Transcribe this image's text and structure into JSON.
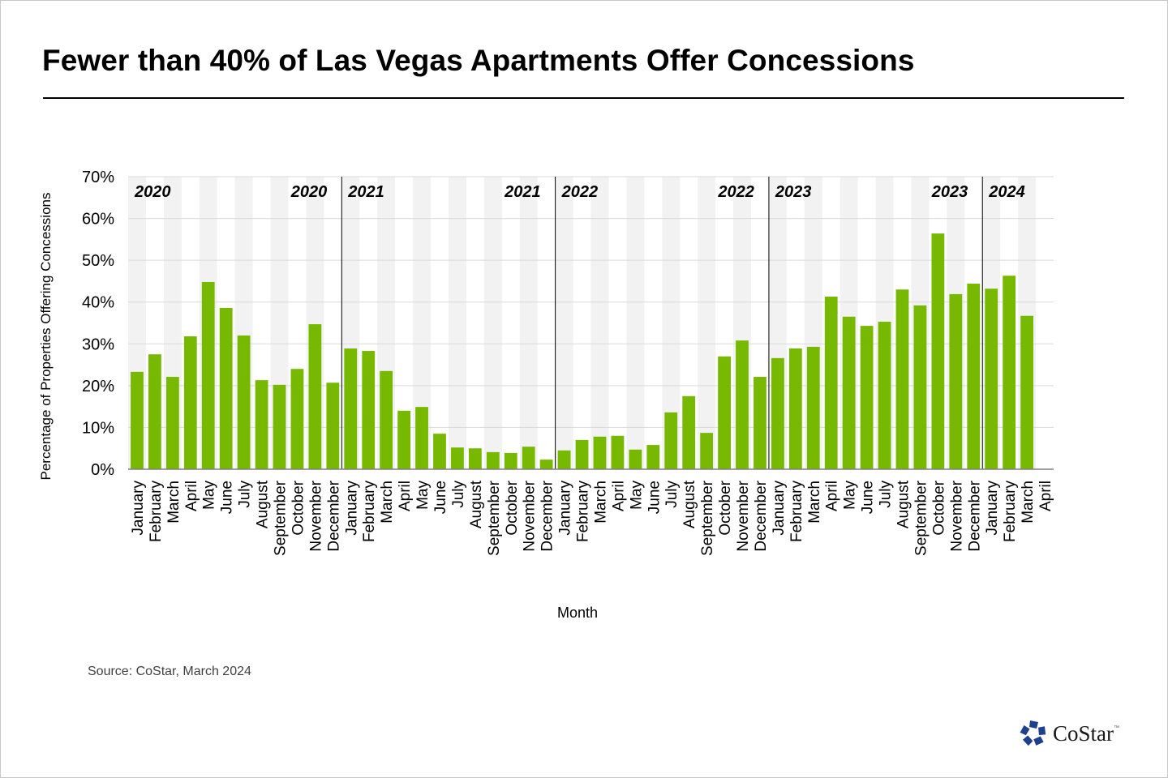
{
  "title": "Fewer than 40% of Las Vegas Apartments Offer Concessions",
  "source": "Source: CoStar, March 2024",
  "logo": {
    "text": "CoStar",
    "tm": "™",
    "icon": "costar-star-icon",
    "color": "#1f3f8f"
  },
  "colors": {
    "bar": "#77b900",
    "band": "#f2f2f2",
    "grid": "#d9d9d9",
    "axis": "#808080",
    "divider": "#000000"
  },
  "chart_data": {
    "type": "bar",
    "title": "Fewer than 40% of Las Vegas Apartments Offer Concessions",
    "xlabel": "Month",
    "ylabel": "Percentage of Properties Offering Concessions",
    "ylim": [
      0,
      70
    ],
    "yticks": [
      "0%",
      "10%",
      "20%",
      "30%",
      "40%",
      "50%",
      "60%",
      "70%"
    ],
    "grid": true,
    "legend": "none",
    "categories": [
      "January",
      "February",
      "March",
      "April",
      "May",
      "June",
      "July",
      "August",
      "September",
      "October",
      "November",
      "December",
      "January",
      "February",
      "March",
      "April",
      "May",
      "June",
      "July",
      "August",
      "September",
      "October",
      "November",
      "December",
      "January",
      "February",
      "March",
      "April",
      "May",
      "June",
      "July",
      "August",
      "September",
      "October",
      "November",
      "December",
      "January",
      "February",
      "March",
      "April",
      "May",
      "June",
      "July",
      "August",
      "September",
      "October",
      "November",
      "December",
      "January",
      "February",
      "March",
      "April"
    ],
    "values": [
      23.3,
      27.5,
      22.1,
      31.8,
      44.8,
      38.6,
      32.0,
      21.3,
      20.2,
      24.0,
      34.7,
      20.7,
      28.9,
      28.3,
      23.5,
      14.0,
      14.9,
      8.5,
      5.2,
      5.0,
      4.1,
      3.9,
      5.4,
      2.3,
      4.5,
      7.0,
      7.8,
      8.0,
      4.7,
      5.8,
      13.6,
      17.5,
      8.7,
      27.0,
      30.8,
      22.1,
      26.6,
      28.9,
      29.3,
      41.3,
      36.5,
      34.3,
      35.3,
      43.0,
      39.2,
      56.4,
      41.9,
      44.4,
      43.2,
      46.3,
      36.7,
      null
    ],
    "year_annotations": [
      {
        "label": "2020",
        "at_index": 0,
        "align": "start"
      },
      {
        "label": "2020",
        "at_index": 11,
        "align": "end"
      },
      {
        "label": "2021",
        "at_index": 12,
        "align": "start"
      },
      {
        "label": "2021",
        "at_index": 23,
        "align": "end"
      },
      {
        "label": "2022",
        "at_index": 24,
        "align": "start"
      },
      {
        "label": "2022",
        "at_index": 35,
        "align": "end"
      },
      {
        "label": "2023",
        "at_index": 36,
        "align": "start"
      },
      {
        "label": "2023",
        "at_index": 47,
        "align": "end"
      },
      {
        "label": "2024",
        "at_index": 48,
        "align": "start"
      }
    ],
    "year_dividers_before_index": [
      12,
      24,
      36,
      48
    ]
  }
}
